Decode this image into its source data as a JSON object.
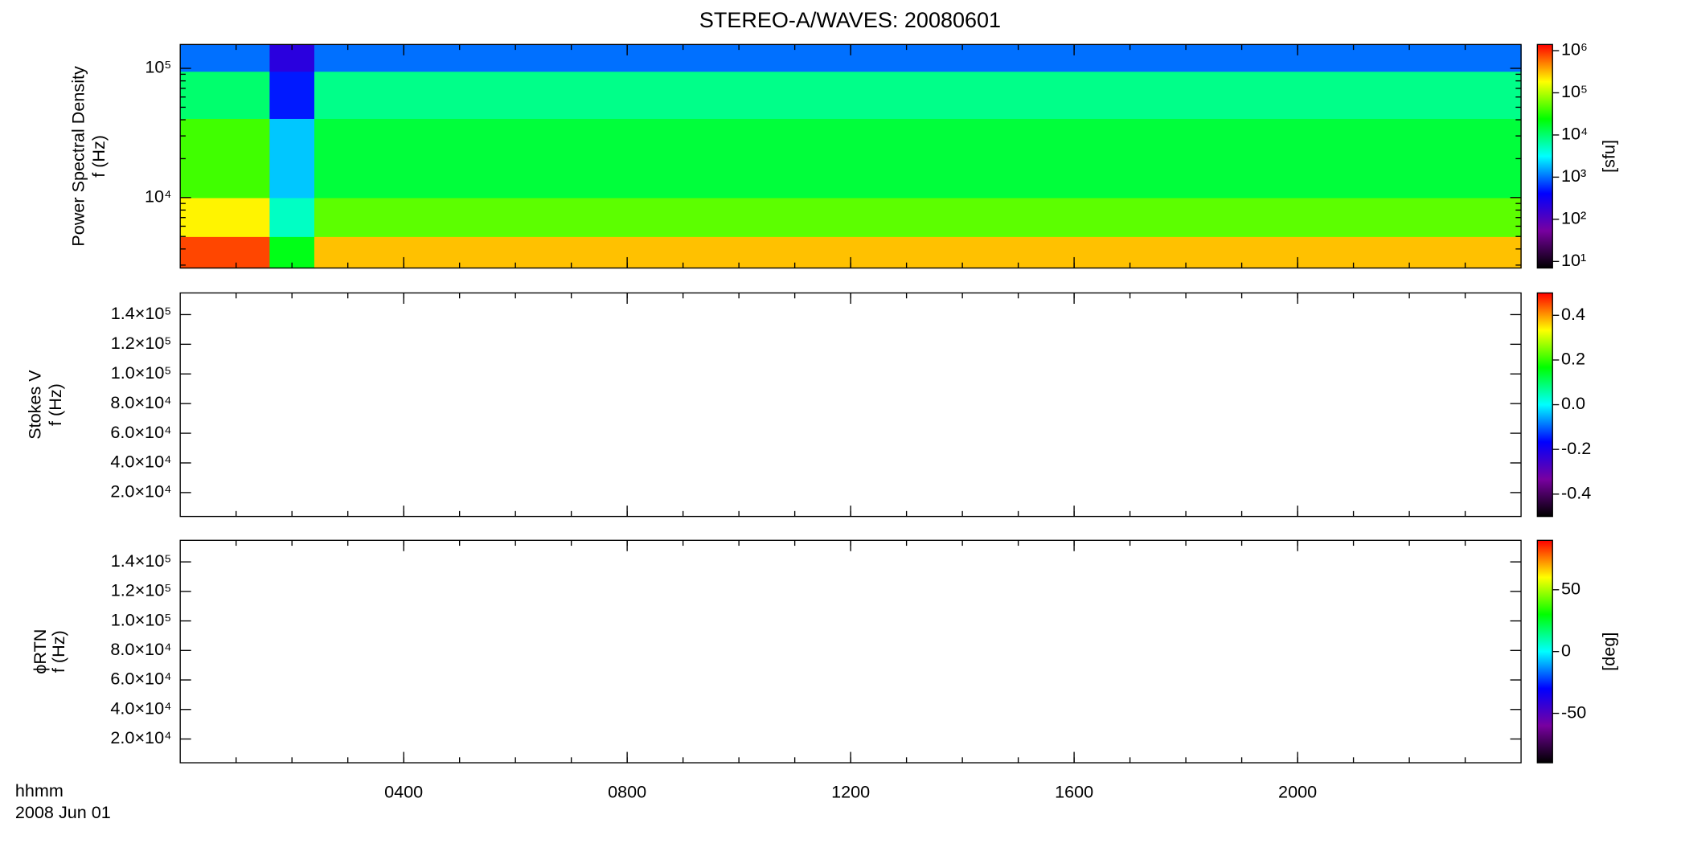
{
  "chart_data": [
    {
      "type": "heatmap",
      "title": "STEREO-A/WAVES: 20080601",
      "ylabel": [
        "Power Spectral Density",
        "f (Hz)"
      ],
      "log_y": true,
      "ylim": [
        2850,
        153000
      ],
      "yticks": [
        {
          "value": 100000,
          "label": "10⁵"
        },
        {
          "value": 10000,
          "label": "10⁴"
        }
      ],
      "x": [
        0,
        1.6,
        2.4,
        24
      ],
      "y": [
        2850,
        5000,
        10000,
        41000,
        95000,
        153000
      ],
      "z": [
        [
          800000,
          20000,
          300000
        ],
        [
          200000,
          5000,
          50000
        ],
        [
          40000,
          2000,
          15000
        ],
        [
          10000,
          500,
          8000
        ],
        [
          1000,
          200,
          1000
        ]
      ],
      "clabel": "[sfu]",
      "log_c": true,
      "clim": [
        7,
        1400000
      ],
      "cticks": [
        {
          "value": 10,
          "label": "10¹"
        },
        {
          "value": 100,
          "label": "10²"
        },
        {
          "value": 1000,
          "label": "10³"
        },
        {
          "value": 10000,
          "label": "10⁴"
        },
        {
          "value": 100000,
          "label": "10⁵"
        },
        {
          "value": 1000000,
          "label": "10⁶"
        }
      ],
      "colormap": [
        "#000000",
        "#7800a0",
        "#0000ff",
        "#00ffff",
        "#00ff00",
        "#ffff00",
        "#ff0000"
      ]
    },
    {
      "type": "heatmap",
      "ylabel": [
        "Stokes V",
        "f (Hz)"
      ],
      "ylim": [
        3900,
        154600
      ],
      "yticks": [
        {
          "value": 20000,
          "label": "2.0×10⁴"
        },
        {
          "value": 40000,
          "label": "4.0×10⁴"
        },
        {
          "value": 60000,
          "label": "6.0×10⁴"
        },
        {
          "value": 80000,
          "label": "8.0×10⁴"
        },
        {
          "value": 100000,
          "label": "1.0×10⁵"
        },
        {
          "value": 120000,
          "label": "1.2×10⁵"
        },
        {
          "value": 140000,
          "label": "1.4×10⁵"
        }
      ],
      "clim": [
        -0.5,
        0.5
      ],
      "cticks": [
        0.4,
        0.2,
        {
          "value": 0,
          "label": "0.0"
        },
        -0.2,
        -0.4
      ],
      "colormap": [
        "#000000",
        "#7800a0",
        "#0000ff",
        "#00ffff",
        "#00ff00",
        "#ffff00",
        "#ff0000"
      ]
    },
    {
      "type": "heatmap",
      "ylabel": [
        "ϕRTN",
        "f (Hz)"
      ],
      "ylim": [
        3900,
        154600
      ],
      "yticks": [
        {
          "value": 20000,
          "label": "2.0×10⁴"
        },
        {
          "value": 40000,
          "label": "4.0×10⁴"
        },
        {
          "value": 60000,
          "label": "6.0×10⁴"
        },
        {
          "value": 80000,
          "label": "8.0×10⁴"
        },
        {
          "value": 100000,
          "label": "1.0×10⁵"
        },
        {
          "value": 120000,
          "label": "1.2×10⁵"
        },
        {
          "value": 140000,
          "label": "1.4×10⁵"
        }
      ],
      "clabel": "[deg]",
      "clim": [
        -90,
        90
      ],
      "cticks": [
        50,
        0,
        -50
      ],
      "colormap": [
        "#000000",
        "#7800a0",
        "#0000ff",
        "#00ffff",
        "#00ff00",
        "#ffff00",
        "#ff0000"
      ],
      "xlabel": [
        "hhmm",
        "2008 Jun 01"
      ],
      "xlim": [
        0,
        24
      ],
      "xticks": [
        {
          "value": 4,
          "label": "0400"
        },
        {
          "value": 8,
          "label": "0800"
        },
        {
          "value": 12,
          "label": "1200"
        },
        {
          "value": 16,
          "label": "1600"
        },
        {
          "value": 20,
          "label": "2000"
        }
      ]
    }
  ]
}
